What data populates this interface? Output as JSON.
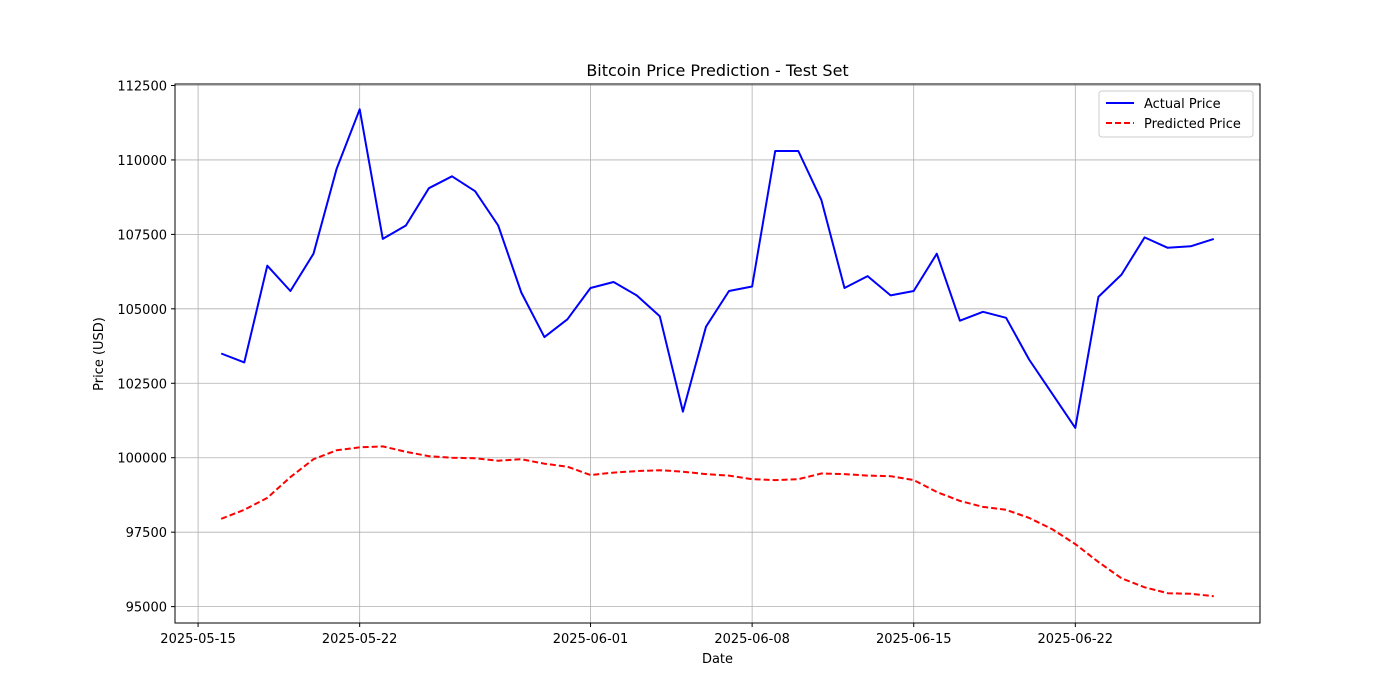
{
  "chart_data": {
    "type": "line",
    "title": "Bitcoin Price Prediction - Test Set",
    "xlabel": "Date",
    "ylabel": "Price (USD)",
    "x": [
      "2025-05-16",
      "2025-05-17",
      "2025-05-18",
      "2025-05-19",
      "2025-05-20",
      "2025-05-21",
      "2025-05-22",
      "2025-05-23",
      "2025-05-24",
      "2025-05-25",
      "2025-05-26",
      "2025-05-27",
      "2025-05-28",
      "2025-05-29",
      "2025-05-30",
      "2025-05-31",
      "2025-06-01",
      "2025-06-02",
      "2025-06-03",
      "2025-06-04",
      "2025-06-05",
      "2025-06-06",
      "2025-06-07",
      "2025-06-08",
      "2025-06-09",
      "2025-06-10",
      "2025-06-11",
      "2025-06-12",
      "2025-06-13",
      "2025-06-14",
      "2025-06-15",
      "2025-06-16",
      "2025-06-17",
      "2025-06-18",
      "2025-06-19",
      "2025-06-20",
      "2025-06-21",
      "2025-06-22",
      "2025-06-23",
      "2025-06-24",
      "2025-06-25",
      "2025-06-26",
      "2025-06-27",
      "2025-06-28"
    ],
    "series": [
      {
        "name": "Actual Price",
        "color": "#0000ff",
        "style": "solid",
        "values": [
          103500,
          103200,
          106450,
          105600,
          106850,
          109700,
          111700,
          107350,
          107800,
          109050,
          109450,
          108950,
          107800,
          105550,
          104050,
          104650,
          105700,
          105900,
          105450,
          104750,
          101550,
          104400,
          105600,
          105750,
          110300,
          110300,
          108650,
          105700,
          106100,
          105450,
          105600,
          106850,
          104600,
          104900,
          104700,
          103300,
          102150,
          101000,
          105400,
          106150,
          107400,
          107050,
          107100,
          107350
        ]
      },
      {
        "name": "Predicted Price",
        "color": "#ff0000",
        "style": "dashed",
        "values": [
          97950,
          98250,
          98650,
          99350,
          99950,
          100250,
          100350,
          100380,
          100200,
          100050,
          100000,
          99980,
          99900,
          99950,
          99800,
          99700,
          99420,
          99500,
          99550,
          99580,
          99530,
          99450,
          99400,
          99280,
          99250,
          99280,
          99470,
          99450,
          99400,
          99380,
          99250,
          98850,
          98550,
          98350,
          98250,
          97980,
          97600,
          97100,
          96500,
          95950,
          95650,
          95450,
          95430,
          95350
        ]
      }
    ],
    "x_ticks": [
      "2025-05-15",
      "2025-05-22",
      "2025-06-01",
      "2025-06-08",
      "2025-06-15",
      "2025-06-22"
    ],
    "y_ticks": [
      95000,
      97500,
      100000,
      102500,
      105000,
      107500,
      110000,
      112500
    ],
    "xlim": [
      "2025-05-14",
      "2025-06-30"
    ],
    "ylim": [
      94450,
      112550
    ],
    "grid": true,
    "legend_position": "top-right"
  }
}
